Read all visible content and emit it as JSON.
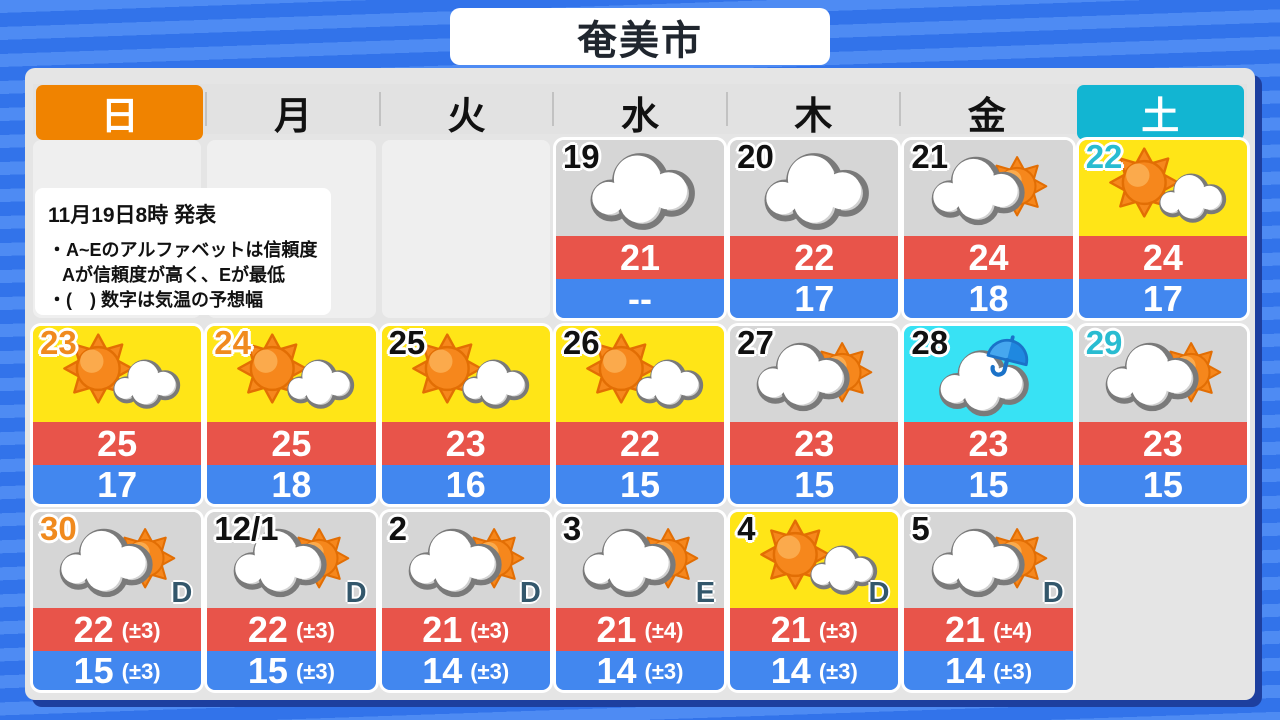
{
  "title": "奄美市",
  "weekdays": [
    {
      "label": "日"
    },
    {
      "label": "月"
    },
    {
      "label": "火"
    },
    {
      "label": "水"
    },
    {
      "label": "木"
    },
    {
      "label": "金"
    },
    {
      "label": "土"
    }
  ],
  "notice": {
    "issued": "11月19日8時 発表",
    "line1": "・A~Eのアルファベットは信頼度",
    "line2": "Aが信頼度が高く、Eが最低",
    "line3": "・(　) 数字は気温の予想幅"
  },
  "colors": {
    "sunday_header": "#f08300",
    "saturday_header": "#12b5d2",
    "sunday_number": "#f08a1e",
    "saturday_number": "#29bcd1",
    "high_band": "#e8544a",
    "low_band": "#4287ef",
    "sunny_cell": "#ffe517",
    "cloudy_cell": "#d6d6d6",
    "rain_cell": "#38e2f4",
    "background_blue": "#3273ea"
  },
  "cells": [
    {
      "type": "empty"
    },
    {
      "type": "empty"
    },
    {
      "type": "empty"
    },
    {
      "day": "19",
      "day_color": "default",
      "bg": "cloudy",
      "icon": "cloudy",
      "high": "21",
      "low": "--"
    },
    {
      "day": "20",
      "day_color": "default",
      "bg": "cloudy",
      "icon": "cloudy",
      "high": "22",
      "low": "17"
    },
    {
      "day": "21",
      "day_color": "default",
      "bg": "cloudy",
      "icon": "cloud-sun",
      "high": "24",
      "low": "18"
    },
    {
      "day": "22",
      "day_color": "saturday",
      "bg": "sunny",
      "icon": "sun-cloud",
      "high": "24",
      "low": "17"
    },
    {
      "day": "23",
      "day_color": "sunday",
      "bg": "sunny",
      "icon": "sun-cloud",
      "high": "25",
      "low": "17"
    },
    {
      "day": "24",
      "day_color": "sunday",
      "bg": "sunny",
      "icon": "sun-cloud",
      "high": "25",
      "low": "18"
    },
    {
      "day": "25",
      "day_color": "default",
      "bg": "sunny",
      "icon": "sun-cloud",
      "high": "23",
      "low": "16"
    },
    {
      "day": "26",
      "day_color": "default",
      "bg": "sunny",
      "icon": "sun-cloud",
      "high": "22",
      "low": "15"
    },
    {
      "day": "27",
      "day_color": "default",
      "bg": "cloudy",
      "icon": "cloud-sun",
      "high": "23",
      "low": "15"
    },
    {
      "day": "28",
      "day_color": "default",
      "bg": "rain",
      "icon": "cloud-rain",
      "high": "23",
      "low": "15"
    },
    {
      "day": "29",
      "day_color": "saturday",
      "bg": "cloudy",
      "icon": "cloud-sun",
      "high": "23",
      "low": "15"
    },
    {
      "day": "30",
      "day_color": "sunday",
      "bg": "cloudy",
      "icon": "cloud-sun",
      "reliability": "D",
      "high": "22",
      "high_range": "(±3)",
      "low": "15",
      "low_range": "(±3)"
    },
    {
      "day": "12/1",
      "day_color": "default",
      "bg": "cloudy",
      "icon": "cloud-sun",
      "reliability": "D",
      "high": "22",
      "high_range": "(±3)",
      "low": "15",
      "low_range": "(±3)"
    },
    {
      "day": "2",
      "day_color": "default",
      "bg": "cloudy",
      "icon": "cloud-sun",
      "reliability": "D",
      "high": "21",
      "high_range": "(±3)",
      "low": "14",
      "low_range": "(±3)"
    },
    {
      "day": "3",
      "day_color": "default",
      "bg": "cloudy",
      "icon": "cloud-sun",
      "reliability": "E",
      "high": "21",
      "high_range": "(±4)",
      "low": "14",
      "low_range": "(±3)"
    },
    {
      "day": "4",
      "day_color": "default",
      "bg": "sunny",
      "icon": "sun-cloud",
      "reliability": "D",
      "high": "21",
      "high_range": "(±3)",
      "low": "14",
      "low_range": "(±3)"
    },
    {
      "day": "5",
      "day_color": "default",
      "bg": "cloudy",
      "icon": "cloud-sun",
      "reliability": "D",
      "high": "21",
      "high_range": "(±4)",
      "low": "14",
      "low_range": "(±3)"
    },
    {
      "type": "none"
    }
  ]
}
